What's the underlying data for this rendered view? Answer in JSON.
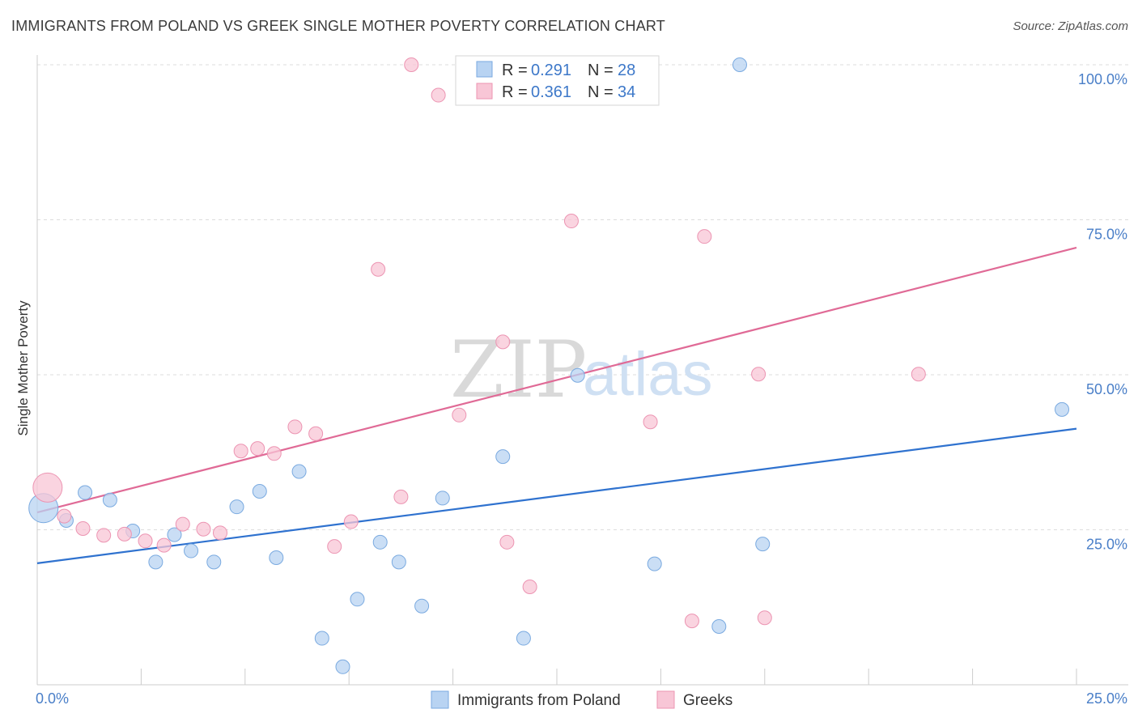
{
  "title": "IMMIGRANTS FROM POLAND VS GREEK SINGLE MOTHER POVERTY CORRELATION CHART",
  "source": "Source: ZipAtlas.com",
  "watermark": {
    "zip": "ZIP",
    "atlas": "atlas"
  },
  "colors": {
    "blue_fill": "#b8d3f2",
    "blue_stroke": "#7aaae0",
    "blue_line": "#2f72cf",
    "pink_fill": "#f8c6d6",
    "pink_stroke": "#ec94b2",
    "pink_line": "#e06a96",
    "grid": "#dddddd",
    "tick_label": "#4a7fc8"
  },
  "legend": {
    "items": [
      {
        "r_label": "R = ",
        "r_value": "0.291",
        "n_label": "N = ",
        "n_value": "28"
      },
      {
        "r_label": "R = ",
        "r_value": "0.361",
        "n_label": "N = ",
        "n_value": "34"
      }
    ]
  },
  "bottom_legend": {
    "series_a": "Immigrants from Poland",
    "series_b": "Greeks"
  },
  "chart_data": {
    "type": "scatter",
    "title": "IMMIGRANTS FROM POLAND VS GREEK SINGLE MOTHER POVERTY CORRELATION CHART",
    "xlabel": "",
    "ylabel": "Single Mother Poverty",
    "xlim": [
      0,
      25
    ],
    "ylim": [
      0,
      102
    ],
    "x_tick_labels": [
      "0.0%",
      "25.0%"
    ],
    "y_ticks": [
      25,
      50,
      75,
      100
    ],
    "y_tick_labels": [
      "25.0%",
      "50.0%",
      "75.0%",
      "100.0%"
    ],
    "grid": true,
    "legend_position": "top-center",
    "series": [
      {
        "name": "Immigrants from Poland",
        "color": "#b8d3f2",
        "R": 0.291,
        "N": 28,
        "trend": {
          "x": [
            0,
            25
          ],
          "y": [
            19.6,
            41.3
          ]
        },
        "points": [
          {
            "x": 0.15,
            "y": 28.5,
            "size": "large"
          },
          {
            "x": 0.7,
            "y": 26.5
          },
          {
            "x": 1.15,
            "y": 31.0
          },
          {
            "x": 1.75,
            "y": 29.8
          },
          {
            "x": 2.3,
            "y": 24.8
          },
          {
            "x": 2.85,
            "y": 19.8
          },
          {
            "x": 3.3,
            "y": 24.2
          },
          {
            "x": 3.7,
            "y": 21.6
          },
          {
            "x": 4.25,
            "y": 19.8
          },
          {
            "x": 4.8,
            "y": 28.7
          },
          {
            "x": 5.35,
            "y": 31.2
          },
          {
            "x": 5.75,
            "y": 20.5
          },
          {
            "x": 6.3,
            "y": 34.4
          },
          {
            "x": 6.85,
            "y": 7.5
          },
          {
            "x": 7.35,
            "y": 2.9
          },
          {
            "x": 7.7,
            "y": 13.8
          },
          {
            "x": 8.25,
            "y": 23.0
          },
          {
            "x": 8.7,
            "y": 19.8
          },
          {
            "x": 9.25,
            "y": 12.7
          },
          {
            "x": 9.75,
            "y": 30.1
          },
          {
            "x": 11.2,
            "y": 36.8
          },
          {
            "x": 11.7,
            "y": 7.5
          },
          {
            "x": 13.0,
            "y": 49.9
          },
          {
            "x": 14.85,
            "y": 19.5
          },
          {
            "x": 16.4,
            "y": 9.4
          },
          {
            "x": 16.9,
            "y": 100.0
          },
          {
            "x": 17.45,
            "y": 22.7
          },
          {
            "x": 24.65,
            "y": 44.4
          }
        ]
      },
      {
        "name": "Greeks",
        "color": "#f8c6d6",
        "R": 0.361,
        "N": 34,
        "trend": {
          "x": [
            0,
            25
          ],
          "y": [
            27.8,
            70.5
          ]
        },
        "points": [
          {
            "x": 0.25,
            "y": 31.8,
            "size": "large"
          },
          {
            "x": 0.65,
            "y": 27.2
          },
          {
            "x": 1.1,
            "y": 25.2
          },
          {
            "x": 1.6,
            "y": 24.1
          },
          {
            "x": 2.1,
            "y": 24.3
          },
          {
            "x": 2.6,
            "y": 23.2
          },
          {
            "x": 3.05,
            "y": 22.5
          },
          {
            "x": 3.5,
            "y": 25.9
          },
          {
            "x": 4.0,
            "y": 25.1
          },
          {
            "x": 4.4,
            "y": 24.5
          },
          {
            "x": 4.9,
            "y": 37.7
          },
          {
            "x": 5.3,
            "y": 38.1
          },
          {
            "x": 5.7,
            "y": 37.3
          },
          {
            "x": 6.2,
            "y": 41.6
          },
          {
            "x": 6.7,
            "y": 40.5
          },
          {
            "x": 7.15,
            "y": 22.3
          },
          {
            "x": 7.55,
            "y": 26.3
          },
          {
            "x": 8.2,
            "y": 67.0
          },
          {
            "x": 8.75,
            "y": 30.3
          },
          {
            "x": 9.0,
            "y": 100.0
          },
          {
            "x": 9.65,
            "y": 95.1
          },
          {
            "x": 10.15,
            "y": 43.5
          },
          {
            "x": 11.2,
            "y": 55.3
          },
          {
            "x": 11.3,
            "y": 23.0
          },
          {
            "x": 11.85,
            "y": 15.8
          },
          {
            "x": 12.85,
            "y": 74.8
          },
          {
            "x": 13.2,
            "y": 100.0
          },
          {
            "x": 14.3,
            "y": 100.0
          },
          {
            "x": 14.75,
            "y": 42.4
          },
          {
            "x": 15.75,
            "y": 10.3
          },
          {
            "x": 16.05,
            "y": 72.3
          },
          {
            "x": 17.35,
            "y": 50.1
          },
          {
            "x": 17.5,
            "y": 10.8
          },
          {
            "x": 21.2,
            "y": 50.1
          }
        ]
      }
    ]
  }
}
